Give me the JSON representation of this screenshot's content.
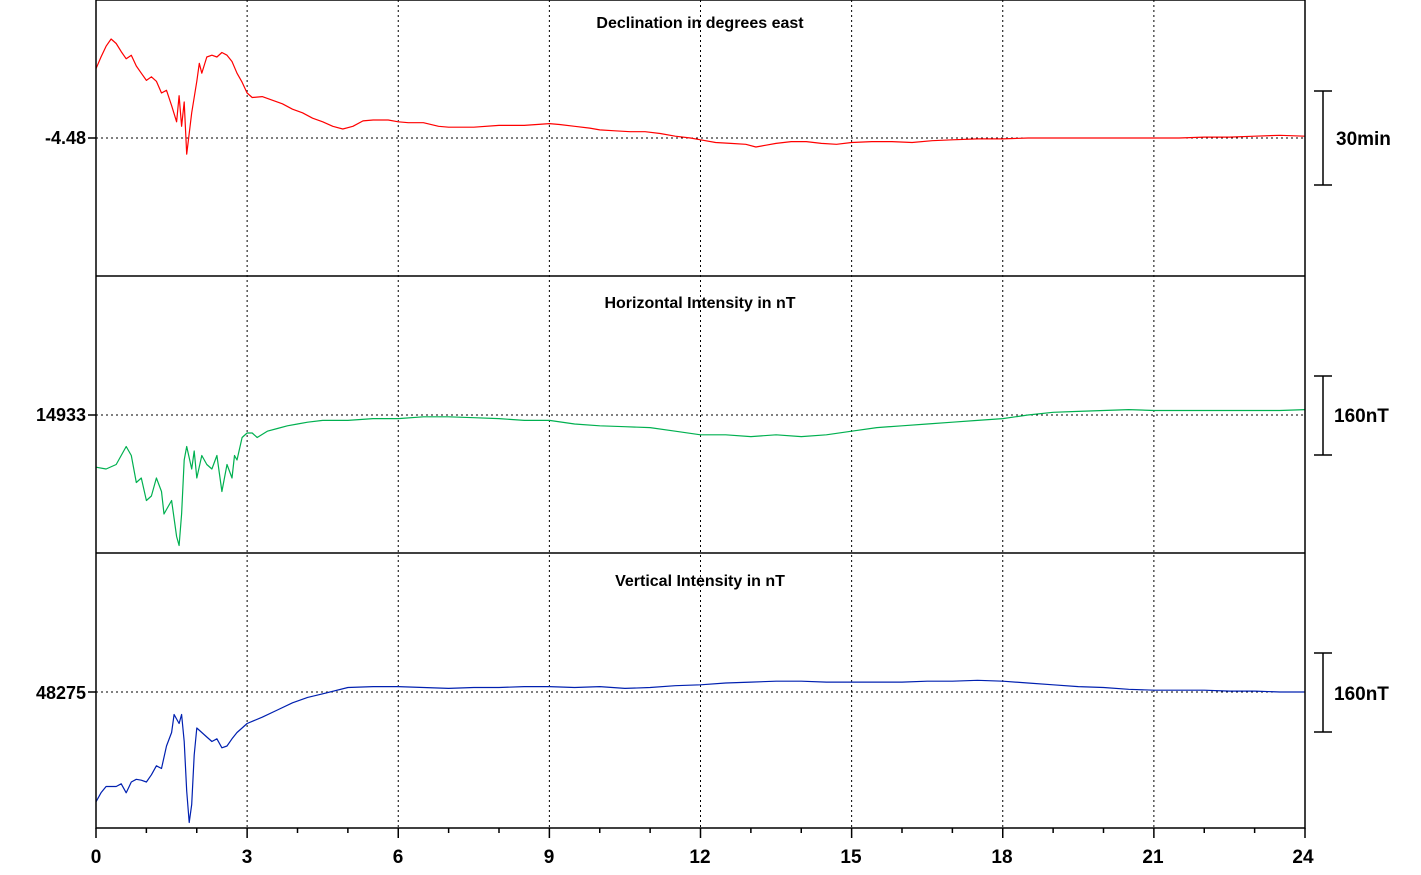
{
  "chart_data": {
    "type": "line",
    "x_axis": {
      "range": [
        0,
        24
      ],
      "ticks": [
        "0",
        "3",
        "6",
        "9",
        "12",
        "15",
        "18",
        "21",
        "24"
      ],
      "minor_step": 1
    },
    "grid": true,
    "panels": [
      {
        "title": "Declination in degrees east",
        "baseline_label": "-4.48",
        "scale_label": "30min",
        "color": "#ff0000",
        "points": [
          [
            0,
            0.77
          ],
          [
            0.1,
            0.9
          ],
          [
            0.2,
            1.02
          ],
          [
            0.3,
            1.1
          ],
          [
            0.4,
            1.05
          ],
          [
            0.5,
            0.96
          ],
          [
            0.6,
            0.88
          ],
          [
            0.7,
            0.92
          ],
          [
            0.8,
            0.8
          ],
          [
            0.9,
            0.72
          ],
          [
            1.0,
            0.64
          ],
          [
            1.1,
            0.68
          ],
          [
            1.2,
            0.63
          ],
          [
            1.3,
            0.5
          ],
          [
            1.4,
            0.53
          ],
          [
            1.5,
            0.36
          ],
          [
            1.6,
            0.18
          ],
          [
            1.65,
            0.47
          ],
          [
            1.7,
            0.13
          ],
          [
            1.75,
            0.4
          ],
          [
            1.8,
            -0.18
          ],
          [
            1.85,
            0.05
          ],
          [
            1.9,
            0.28
          ],
          [
            2.0,
            0.63
          ],
          [
            2.05,
            0.83
          ],
          [
            2.1,
            0.72
          ],
          [
            2.2,
            0.9
          ],
          [
            2.3,
            0.92
          ],
          [
            2.4,
            0.9
          ],
          [
            2.5,
            0.95
          ],
          [
            2.6,
            0.92
          ],
          [
            2.7,
            0.85
          ],
          [
            2.8,
            0.72
          ],
          [
            2.9,
            0.62
          ],
          [
            3.0,
            0.5
          ],
          [
            3.1,
            0.45
          ],
          [
            3.3,
            0.46
          ],
          [
            3.5,
            0.42
          ],
          [
            3.7,
            0.38
          ],
          [
            3.9,
            0.32
          ],
          [
            4.1,
            0.28
          ],
          [
            4.3,
            0.22
          ],
          [
            4.5,
            0.18
          ],
          [
            4.7,
            0.13
          ],
          [
            4.9,
            0.1
          ],
          [
            5.1,
            0.13
          ],
          [
            5.3,
            0.19
          ],
          [
            5.5,
            0.2
          ],
          [
            5.8,
            0.2
          ],
          [
            6.0,
            0.18
          ],
          [
            6.2,
            0.17
          ],
          [
            6.5,
            0.17
          ],
          [
            6.8,
            0.13
          ],
          [
            7.0,
            0.12
          ],
          [
            7.5,
            0.12
          ],
          [
            8.0,
            0.14
          ],
          [
            8.5,
            0.14
          ],
          [
            9.0,
            0.16
          ],
          [
            9.2,
            0.15
          ],
          [
            9.5,
            0.13
          ],
          [
            9.8,
            0.11
          ],
          [
            10.0,
            0.09
          ],
          [
            10.3,
            0.08
          ],
          [
            10.6,
            0.07
          ],
          [
            10.9,
            0.07
          ],
          [
            11.2,
            0.05
          ],
          [
            11.5,
            0.02
          ],
          [
            11.8,
            0.0
          ],
          [
            12.0,
            -0.02
          ],
          [
            12.3,
            -0.05
          ],
          [
            12.6,
            -0.06
          ],
          [
            12.9,
            -0.07
          ],
          [
            13.1,
            -0.1
          ],
          [
            13.3,
            -0.08
          ],
          [
            13.5,
            -0.06
          ],
          [
            13.8,
            -0.04
          ],
          [
            14.1,
            -0.04
          ],
          [
            14.4,
            -0.06
          ],
          [
            14.7,
            -0.07
          ],
          [
            15.0,
            -0.05
          ],
          [
            15.4,
            -0.04
          ],
          [
            15.8,
            -0.04
          ],
          [
            16.2,
            -0.05
          ],
          [
            16.6,
            -0.03
          ],
          [
            17.0,
            -0.02
          ],
          [
            17.5,
            -0.01
          ],
          [
            18.0,
            -0.01
          ],
          [
            18.5,
            0.0
          ],
          [
            19.0,
            0.0
          ],
          [
            19.5,
            0.0
          ],
          [
            20.0,
            0.0
          ],
          [
            20.5,
            0.0
          ],
          [
            21.0,
            0.0
          ],
          [
            21.5,
            0.0
          ],
          [
            22.0,
            0.01
          ],
          [
            22.5,
            0.01
          ],
          [
            23.0,
            0.02
          ],
          [
            23.5,
            0.03
          ],
          [
            24.0,
            0.02
          ]
        ]
      },
      {
        "title": "Horizontal Intensity in nT",
        "baseline_label": "14933",
        "scale_label": "160nT",
        "color": "#00b050",
        "points": [
          [
            0,
            -0.58
          ],
          [
            0.2,
            -0.6
          ],
          [
            0.4,
            -0.55
          ],
          [
            0.5,
            -0.45
          ],
          [
            0.6,
            -0.35
          ],
          [
            0.7,
            -0.45
          ],
          [
            0.8,
            -0.75
          ],
          [
            0.9,
            -0.7
          ],
          [
            1.0,
            -0.95
          ],
          [
            1.1,
            -0.9
          ],
          [
            1.2,
            -0.7
          ],
          [
            1.3,
            -0.85
          ],
          [
            1.35,
            -1.1
          ],
          [
            1.4,
            -1.05
          ],
          [
            1.5,
            -0.95
          ],
          [
            1.6,
            -1.35
          ],
          [
            1.65,
            -1.45
          ],
          [
            1.7,
            -1.1
          ],
          [
            1.75,
            -0.5
          ],
          [
            1.8,
            -0.35
          ],
          [
            1.9,
            -0.6
          ],
          [
            1.95,
            -0.4
          ],
          [
            2.0,
            -0.7
          ],
          [
            2.1,
            -0.45
          ],
          [
            2.2,
            -0.55
          ],
          [
            2.3,
            -0.6
          ],
          [
            2.4,
            -0.45
          ],
          [
            2.5,
            -0.85
          ],
          [
            2.6,
            -0.55
          ],
          [
            2.7,
            -0.7
          ],
          [
            2.75,
            -0.45
          ],
          [
            2.8,
            -0.5
          ],
          [
            2.9,
            -0.25
          ],
          [
            3.0,
            -0.2
          ],
          [
            3.1,
            -0.2
          ],
          [
            3.2,
            -0.25
          ],
          [
            3.4,
            -0.18
          ],
          [
            3.6,
            -0.15
          ],
          [
            3.8,
            -0.12
          ],
          [
            4.0,
            -0.1
          ],
          [
            4.2,
            -0.08
          ],
          [
            4.5,
            -0.06
          ],
          [
            5.0,
            -0.06
          ],
          [
            5.5,
            -0.04
          ],
          [
            6.0,
            -0.04
          ],
          [
            6.5,
            -0.02
          ],
          [
            7.0,
            -0.02
          ],
          [
            7.5,
            -0.03
          ],
          [
            8.0,
            -0.04
          ],
          [
            8.5,
            -0.06
          ],
          [
            9.0,
            -0.06
          ],
          [
            9.5,
            -0.1
          ],
          [
            10.0,
            -0.12
          ],
          [
            10.5,
            -0.13
          ],
          [
            11.0,
            -0.14
          ],
          [
            11.5,
            -0.18
          ],
          [
            12.0,
            -0.22
          ],
          [
            12.5,
            -0.22
          ],
          [
            13.0,
            -0.24
          ],
          [
            13.5,
            -0.22
          ],
          [
            14.0,
            -0.24
          ],
          [
            14.5,
            -0.22
          ],
          [
            15.0,
            -0.18
          ],
          [
            15.5,
            -0.14
          ],
          [
            16.0,
            -0.12
          ],
          [
            16.5,
            -0.1
          ],
          [
            17.0,
            -0.08
          ],
          [
            17.5,
            -0.06
          ],
          [
            18.0,
            -0.04
          ],
          [
            18.5,
            0.0
          ],
          [
            19.0,
            0.03
          ],
          [
            19.5,
            0.04
          ],
          [
            20.0,
            0.05
          ],
          [
            20.5,
            0.06
          ],
          [
            21.0,
            0.05
          ],
          [
            21.5,
            0.05
          ],
          [
            22.0,
            0.05
          ],
          [
            22.5,
            0.05
          ],
          [
            23.0,
            0.05
          ],
          [
            23.5,
            0.05
          ],
          [
            24.0,
            0.06
          ]
        ]
      },
      {
        "title": "Vertical Intensity in nT",
        "baseline_label": "48275",
        "scale_label": "160nT",
        "color": "#0020b0",
        "points": [
          [
            0,
            -1.22
          ],
          [
            0.1,
            -1.12
          ],
          [
            0.2,
            -1.05
          ],
          [
            0.4,
            -1.05
          ],
          [
            0.5,
            -1.02
          ],
          [
            0.6,
            -1.12
          ],
          [
            0.7,
            -1.0
          ],
          [
            0.8,
            -0.97
          ],
          [
            0.9,
            -0.98
          ],
          [
            1.0,
            -1.0
          ],
          [
            1.1,
            -0.92
          ],
          [
            1.2,
            -0.82
          ],
          [
            1.3,
            -0.85
          ],
          [
            1.4,
            -0.6
          ],
          [
            1.5,
            -0.45
          ],
          [
            1.55,
            -0.25
          ],
          [
            1.6,
            -0.3
          ],
          [
            1.65,
            -0.35
          ],
          [
            1.7,
            -0.25
          ],
          [
            1.75,
            -0.55
          ],
          [
            1.8,
            -1.1
          ],
          [
            1.85,
            -1.45
          ],
          [
            1.9,
            -1.25
          ],
          [
            1.95,
            -0.7
          ],
          [
            2.0,
            -0.4
          ],
          [
            2.1,
            -0.45
          ],
          [
            2.2,
            -0.5
          ],
          [
            2.3,
            -0.55
          ],
          [
            2.4,
            -0.52
          ],
          [
            2.5,
            -0.62
          ],
          [
            2.6,
            -0.6
          ],
          [
            2.7,
            -0.52
          ],
          [
            2.8,
            -0.45
          ],
          [
            2.9,
            -0.4
          ],
          [
            3.0,
            -0.35
          ],
          [
            3.3,
            -0.28
          ],
          [
            3.6,
            -0.2
          ],
          [
            3.9,
            -0.12
          ],
          [
            4.2,
            -0.06
          ],
          [
            4.5,
            -0.02
          ],
          [
            5.0,
            0.05
          ],
          [
            5.5,
            0.06
          ],
          [
            6.0,
            0.06
          ],
          [
            6.5,
            0.05
          ],
          [
            7.0,
            0.04
          ],
          [
            7.5,
            0.05
          ],
          [
            8.0,
            0.05
          ],
          [
            8.5,
            0.06
          ],
          [
            9.0,
            0.06
          ],
          [
            9.5,
            0.05
          ],
          [
            10.0,
            0.06
          ],
          [
            10.5,
            0.04
          ],
          [
            11.0,
            0.05
          ],
          [
            11.5,
            0.07
          ],
          [
            12.0,
            0.08
          ],
          [
            12.5,
            0.1
          ],
          [
            13.0,
            0.11
          ],
          [
            13.5,
            0.12
          ],
          [
            14.0,
            0.12
          ],
          [
            14.5,
            0.11
          ],
          [
            15.0,
            0.11
          ],
          [
            15.5,
            0.11
          ],
          [
            16.0,
            0.11
          ],
          [
            16.5,
            0.12
          ],
          [
            17.0,
            0.12
          ],
          [
            17.5,
            0.13
          ],
          [
            18.0,
            0.12
          ],
          [
            18.5,
            0.1
          ],
          [
            19.0,
            0.08
          ],
          [
            19.5,
            0.06
          ],
          [
            20.0,
            0.05
          ],
          [
            20.5,
            0.03
          ],
          [
            21.0,
            0.02
          ],
          [
            21.5,
            0.02
          ],
          [
            22.0,
            0.02
          ],
          [
            22.5,
            0.01
          ],
          [
            23.0,
            0.01
          ],
          [
            23.5,
            0.0
          ],
          [
            24.0,
            0.0
          ]
        ]
      }
    ]
  }
}
